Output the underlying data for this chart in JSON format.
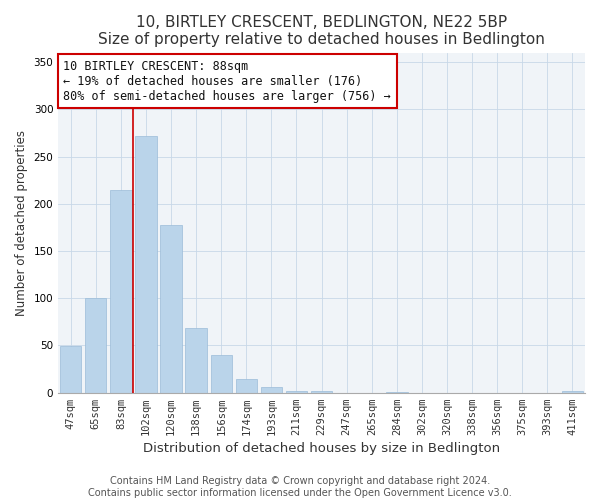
{
  "title": "10, BIRTLEY CRESCENT, BEDLINGTON, NE22 5BP",
  "subtitle": "Size of property relative to detached houses in Bedlington",
  "xlabel": "Distribution of detached houses by size in Bedlington",
  "ylabel": "Number of detached properties",
  "bar_labels": [
    "47sqm",
    "65sqm",
    "83sqm",
    "102sqm",
    "120sqm",
    "138sqm",
    "156sqm",
    "174sqm",
    "193sqm",
    "211sqm",
    "229sqm",
    "247sqm",
    "265sqm",
    "284sqm",
    "302sqm",
    "320sqm",
    "338sqm",
    "356sqm",
    "375sqm",
    "393sqm",
    "411sqm"
  ],
  "bar_values": [
    49,
    100,
    215,
    272,
    178,
    68,
    40,
    14,
    6,
    2,
    2,
    0,
    0,
    1,
    0,
    0,
    0,
    0,
    0,
    0,
    2
  ],
  "bar_color": "#bad4ea",
  "bar_edge_color": "#9bbcd8",
  "vline_x_index": 2,
  "vline_color": "#cc0000",
  "ylim": [
    0,
    360
  ],
  "yticks": [
    0,
    50,
    100,
    150,
    200,
    250,
    300,
    350
  ],
  "annotation_line1": "10 BIRTLEY CRESCENT: 88sqm",
  "annotation_line2": "← 19% of detached houses are smaller (176)",
  "annotation_line3": "80% of semi-detached houses are larger (756) →",
  "footer_line1": "Contains HM Land Registry data © Crown copyright and database right 2024.",
  "footer_line2": "Contains public sector information licensed under the Open Government Licence v3.0.",
  "title_fontsize": 11,
  "subtitle_fontsize": 9.5,
  "xlabel_fontsize": 9.5,
  "ylabel_fontsize": 8.5,
  "tick_fontsize": 7.5,
  "annotation_fontsize": 8.5,
  "footer_fontsize": 7
}
